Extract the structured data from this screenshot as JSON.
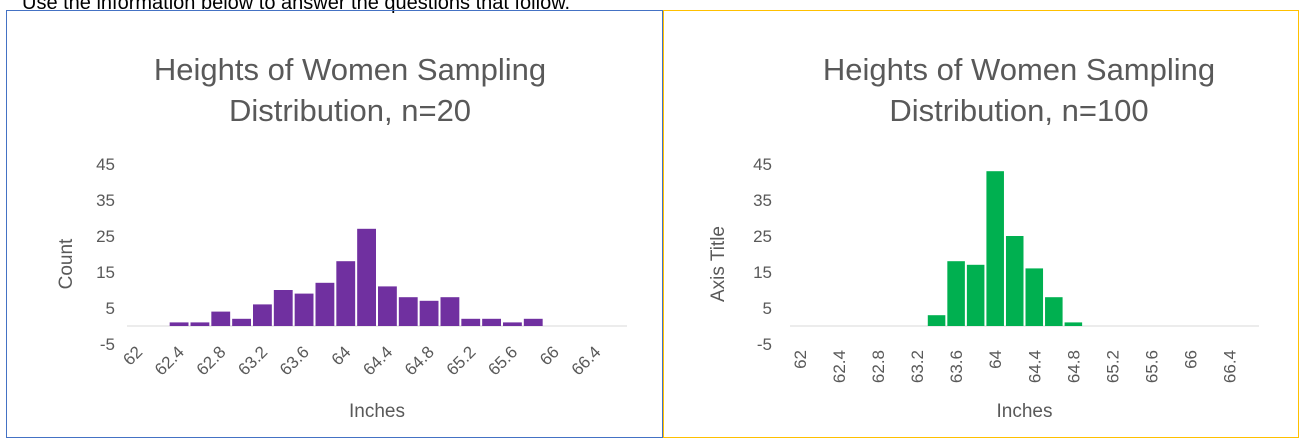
{
  "intro_text": "Use the information below to answer the questions that follow.",
  "chart_data": [
    {
      "type": "bar",
      "title": "Heights of Women Sampling Distribution, n=20",
      "title_lines": [
        "Heights of Women Sampling",
        "Distribution, n=20"
      ],
      "xlabel": "Inches",
      "ylabel": "Count",
      "y_ticks": [
        "45",
        "35",
        "25",
        "15",
        "5",
        "-5"
      ],
      "ylim": [
        -5,
        45
      ],
      "x_tick_labels": [
        "62",
        "62.4",
        "62.8",
        "63.2",
        "63.6",
        "64",
        "64.4",
        "64.8",
        "65.2",
        "65.6",
        "66",
        "66.4"
      ],
      "x_tick_rotation": "diagonal",
      "categories": [
        "62",
        "62.2",
        "62.4",
        "62.6",
        "62.8",
        "63",
        "63.2",
        "63.4",
        "63.6",
        "63.8",
        "64",
        "64.2",
        "64.4",
        "64.6",
        "64.8",
        "65",
        "65.2",
        "65.4",
        "65.6",
        "65.8",
        "66",
        "66.2",
        "66.4",
        "66.6"
      ],
      "values": [
        0,
        0,
        1,
        1,
        4,
        2,
        6,
        10,
        9,
        12,
        18,
        27,
        11,
        8,
        7,
        8,
        2,
        2,
        1,
        2,
        0,
        0,
        0,
        0
      ],
      "color": "#7030a0",
      "grid": false
    },
    {
      "type": "bar",
      "title": "Heights of Women Sampling Distribution, n=100",
      "title_lines": [
        "Heights of Women Sampling",
        "Distribution, n=100"
      ],
      "xlabel": "Inches",
      "ylabel": "Axis Title",
      "y_ticks": [
        "45",
        "35",
        "25",
        "15",
        "5",
        "-5"
      ],
      "ylim": [
        -5,
        45
      ],
      "x_tick_labels": [
        "62",
        "62.4",
        "62.8",
        "63.2",
        "63.6",
        "64",
        "64.4",
        "64.8",
        "65.2",
        "65.6",
        "66",
        "66.4"
      ],
      "x_tick_rotation": "vertical",
      "categories": [
        "62",
        "62.2",
        "62.4",
        "62.6",
        "62.8",
        "63",
        "63.2",
        "63.4",
        "63.6",
        "63.8",
        "64",
        "64.2",
        "64.4",
        "64.6",
        "64.8",
        "65",
        "65.2",
        "65.4",
        "65.6",
        "65.8",
        "66",
        "66.2",
        "66.4",
        "66.6"
      ],
      "values": [
        0,
        0,
        0,
        0,
        0,
        0,
        0,
        3,
        18,
        17,
        43,
        25,
        16,
        8,
        1,
        0,
        0,
        0,
        0,
        0,
        0,
        0,
        0,
        0
      ],
      "color": "#00b050",
      "grid": false
    }
  ]
}
